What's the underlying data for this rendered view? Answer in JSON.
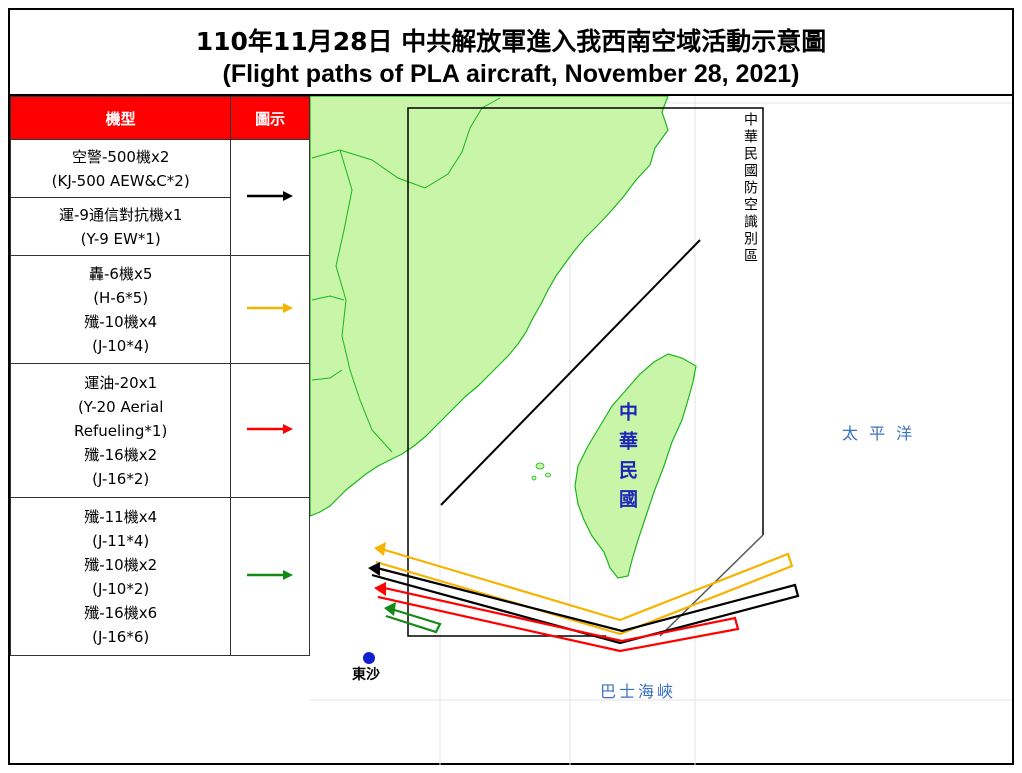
{
  "title": {
    "zh": "110年11月28日 中共解放軍進入我西南空域活動示意圖",
    "en": "(Flight paths of PLA aircraft, November 28, 2021)"
  },
  "legend": {
    "header_type": "機型",
    "header_symbol": "圖示",
    "groups": [
      {
        "color": "#000000",
        "entries": [
          [
            "空警-500機x2",
            "(KJ-500 AEW&C*2)"
          ],
          [
            "運-9通信對抗機x1",
            "(Y-9 EW*1)"
          ]
        ]
      },
      {
        "color": "#f5b400",
        "entries": [
          [
            "轟-6機x5",
            "(H-6*5)",
            "殲-10機x4",
            "(J-10*4)"
          ]
        ]
      },
      {
        "color": "#ff0000",
        "entries": [
          [
            "運油-20x1",
            "(Y-20 Aerial",
            "Refueling*1)",
            "殲-16機x2",
            "(J-16*2)"
          ]
        ]
      },
      {
        "color": "#138a13",
        "entries": [
          [
            "殲-11機x4",
            "(J-11*4)",
            "殲-10機x2",
            "(J-10*2)",
            "殲-16機x6",
            "(J-16*6)"
          ]
        ]
      }
    ]
  },
  "map_labels": {
    "adiz": "中華民國防空識別區",
    "taiwan": "中華民國",
    "pacific": "太 平 洋",
    "bashi": "巴士海峽",
    "dongsha": "東沙"
  },
  "colors": {
    "land": "#c8f5a8",
    "coast": "#1db51d",
    "black_path": "#000000",
    "yellow_path": "#f5b400",
    "red_path": "#ff0000",
    "green_path": "#138a13"
  }
}
